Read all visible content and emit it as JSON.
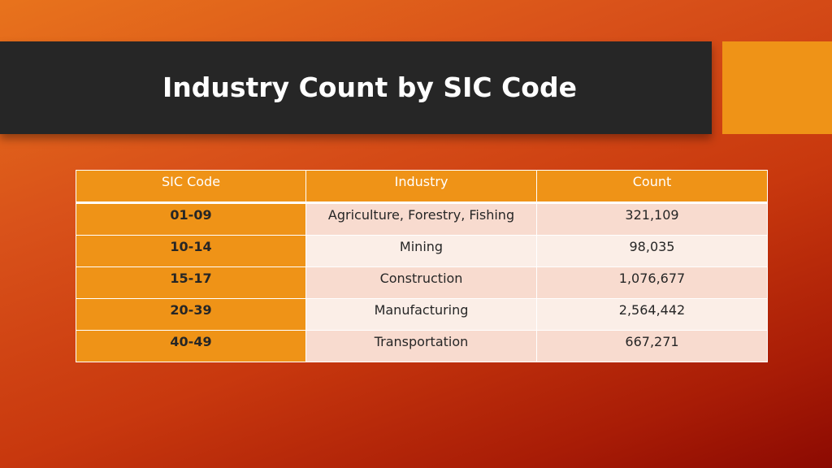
{
  "slide": {
    "title": "Industry Count by SIC Code"
  },
  "colors": {
    "title_bar": "#262626",
    "accent": "#ef9317",
    "row_shade_dark": "#f8dbcf",
    "row_shade_light": "#fbeee7"
  },
  "table": {
    "headers": [
      "SIC Code",
      "Industry",
      "Count"
    ],
    "rows": [
      {
        "code": "01-09",
        "industry": "Agriculture, Forestry, Fishing",
        "count": "321,109"
      },
      {
        "code": "10-14",
        "industry": "Mining",
        "count": "98,035"
      },
      {
        "code": "15-17",
        "industry": "Construction",
        "count": "1,076,677"
      },
      {
        "code": "20-39",
        "industry": "Manufacturing",
        "count": "2,564,442"
      },
      {
        "code": "40-49",
        "industry": "Transportation",
        "count": "667,271"
      }
    ]
  }
}
